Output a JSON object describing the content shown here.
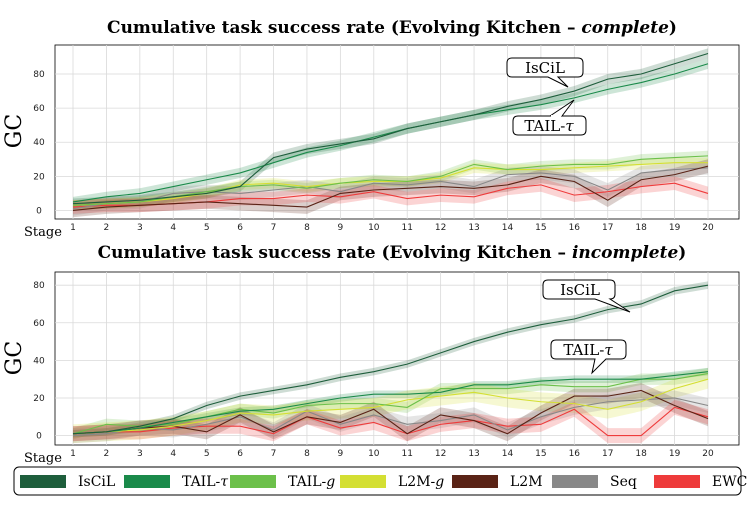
{
  "legend": [
    {
      "label": "IsCiL",
      "italic_suffix": "",
      "color": "#1e5e3c"
    },
    {
      "label": "TAIL-",
      "italic_suffix": "τ",
      "color": "#1a8a4a"
    },
    {
      "label": "TAIL-",
      "italic_suffix": "g",
      "color": "#6cc04a"
    },
    {
      "label": "L2M-",
      "italic_suffix": "g",
      "color": "#d4df33"
    },
    {
      "label": "L2M",
      "italic_suffix": "",
      "color": "#5a2316"
    },
    {
      "label": "Seq",
      "italic_suffix": "",
      "color": "#888888"
    },
    {
      "label": "EWC",
      "italic_suffix": "",
      "color": "#ee3b3b"
    }
  ],
  "chart_data": [
    {
      "type": "line",
      "title": "Cumulative task success rate (Evolving Kitchen – ",
      "title_italic": "complete",
      "title_end": ")",
      "xlabel": "Stage",
      "ylabel": "GC",
      "ylim": [
        -5,
        97
      ],
      "yticks": [
        0,
        20,
        40,
        60,
        80
      ],
      "x": [
        1,
        2,
        3,
        4,
        5,
        6,
        7,
        8,
        9,
        10,
        11,
        12,
        13,
        14,
        15,
        16,
        17,
        18,
        19,
        20
      ],
      "annotations": [
        {
          "text": "IsCiL",
          "italic": ""
        },
        {
          "text": "TAIL-",
          "italic": "τ"
        }
      ],
      "series": [
        {
          "name": "IsCiL",
          "color": "#1e5e3c",
          "values": [
            4,
            5,
            6,
            8,
            10,
            14,
            31,
            36,
            39,
            42,
            48,
            52,
            56,
            61,
            65,
            70,
            77,
            80,
            86,
            92
          ],
          "band": 3
        },
        {
          "name": "TAIL-τ",
          "color": "#1a8a4a",
          "values": [
            5,
            8,
            10,
            14,
            18,
            22,
            28,
            34,
            38,
            43,
            48,
            52,
            56,
            59,
            62,
            66,
            71,
            75,
            80,
            86
          ],
          "band": 3
        },
        {
          "name": "TAIL-g",
          "color": "#6cc04a",
          "values": [
            3,
            4,
            5,
            8,
            11,
            14,
            15,
            13,
            16,
            18,
            17,
            20,
            27,
            24,
            26,
            27,
            27,
            30,
            31,
            32
          ],
          "band": 3
        },
        {
          "name": "L2M-g",
          "color": "#d4df33",
          "values": [
            3,
            4,
            5,
            7,
            10,
            15,
            16,
            14,
            16,
            17,
            17,
            19,
            25,
            24,
            24,
            25,
            26,
            27,
            28,
            28
          ],
          "band": 3
        },
        {
          "name": "L2M",
          "color": "#5a2316",
          "values": [
            0,
            2,
            3,
            4,
            5,
            4,
            3,
            2,
            10,
            12,
            13,
            14,
            13,
            15,
            20,
            17,
            6,
            18,
            21,
            26
          ],
          "band": 4
        },
        {
          "name": "Seq",
          "color": "#888888",
          "values": [
            1,
            4,
            5,
            10,
            11,
            10,
            12,
            14,
            11,
            16,
            15,
            17,
            14,
            21,
            22,
            20,
            12,
            22,
            24,
            25
          ],
          "band": 4
        },
        {
          "name": "EWC",
          "color": "#ee3b3b",
          "values": [
            2,
            3,
            3,
            4,
            5,
            7,
            7,
            9,
            8,
            11,
            7,
            9,
            8,
            13,
            15,
            9,
            11,
            14,
            16,
            10
          ],
          "band": 4
        }
      ]
    },
    {
      "type": "line",
      "title": "Cumulative task success rate (Evolving Kitchen – ",
      "title_italic": "incomplete",
      "title_end": ")",
      "xlabel": "Stage",
      "ylabel": "GC",
      "ylim": [
        -5,
        87
      ],
      "yticks": [
        0,
        20,
        40,
        60,
        80
      ],
      "x": [
        1,
        2,
        3,
        4,
        5,
        6,
        7,
        8,
        9,
        10,
        11,
        12,
        13,
        14,
        15,
        16,
        17,
        18,
        19,
        20
      ],
      "annotations": [
        {
          "text": "IsCiL",
          "italic": ""
        },
        {
          "text": "TAIL-",
          "italic": "τ"
        }
      ],
      "series": [
        {
          "name": "IsCiL",
          "color": "#1e5e3c",
          "values": [
            1,
            2,
            5,
            9,
            16,
            21,
            24,
            27,
            31,
            34,
            38,
            44,
            50,
            55,
            59,
            62,
            67,
            70,
            77,
            80
          ],
          "band": 2
        },
        {
          "name": "TAIL-τ",
          "color": "#1a8a4a",
          "values": [
            1,
            2,
            4,
            7,
            10,
            13,
            14,
            17,
            20,
            22,
            22,
            23,
            27,
            27,
            29,
            30,
            30,
            30,
            32,
            34
          ],
          "band": 2
        },
        {
          "name": "TAIL-g",
          "color": "#6cc04a",
          "values": [
            1,
            6,
            5,
            6,
            10,
            14,
            12,
            16,
            17,
            17,
            15,
            25,
            25,
            25,
            27,
            26,
            26,
            30,
            30,
            33
          ],
          "band": 3
        },
        {
          "name": "L2M-g",
          "color": "#d4df33",
          "values": [
            1,
            2,
            3,
            5,
            8,
            12,
            11,
            13,
            14,
            15,
            19,
            21,
            23,
            20,
            18,
            17,
            14,
            18,
            25,
            30
          ],
          "band": 5
        },
        {
          "name": "L2M",
          "color": "#5a2316",
          "values": [
            1,
            2,
            4,
            5,
            2,
            11,
            2,
            10,
            7,
            14,
            1,
            11,
            8,
            1,
            12,
            21,
            21,
            24,
            16,
            9
          ],
          "band": 4
        },
        {
          "name": "Seq",
          "color": "#888888",
          "values": [
            0,
            1,
            4,
            3,
            6,
            10,
            3,
            13,
            6,
            11,
            6,
            8,
            11,
            3,
            10,
            15,
            18,
            19,
            20,
            16
          ],
          "band": 4
        },
        {
          "name": "EWC",
          "color": "#ee3b3b",
          "values": [
            1,
            2,
            2,
            4,
            5,
            5,
            1,
            10,
            4,
            7,
            1,
            6,
            8,
            5,
            6,
            14,
            0,
            0,
            15,
            10
          ],
          "band": 4
        }
      ]
    }
  ]
}
